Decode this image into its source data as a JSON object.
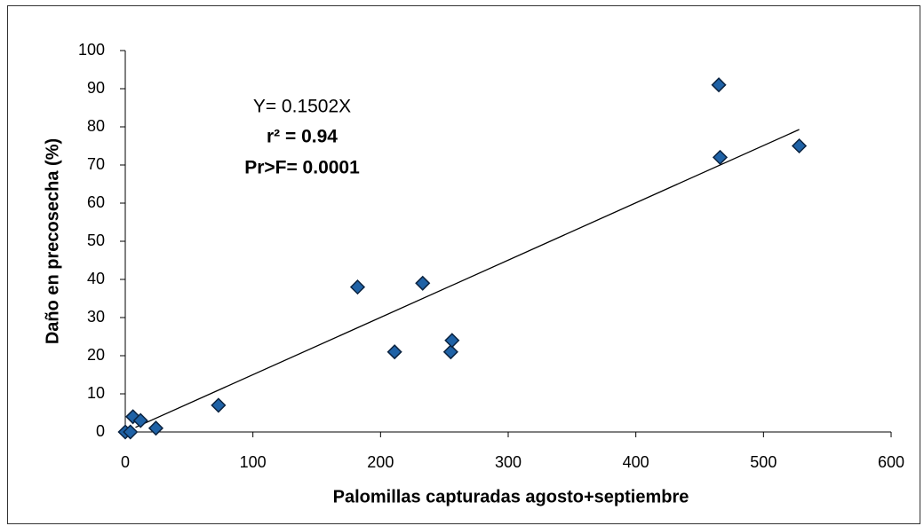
{
  "chart_data": {
    "type": "scatter",
    "x_label": "Palomillas capturadas agosto+septiembre",
    "y_label": "Daño en precosecha (%)",
    "annotations": [
      "Y= 0.1502X",
      "r² = 0.94",
      "Pr>F= 0.0001"
    ],
    "annotation_colors": [
      "#e0282e",
      "#1a1a1a",
      "#4a4a2a"
    ],
    "x": [
      0,
      4,
      6,
      12,
      24,
      73,
      182,
      211,
      233,
      255,
      256,
      465,
      466,
      528
    ],
    "values": [
      0,
      0,
      4,
      3,
      1,
      7,
      38,
      21,
      39,
      21,
      24,
      91,
      72,
      75
    ],
    "color": "#1f62a6",
    "trendline": {
      "x": [
        8,
        528
      ],
      "y": [
        1.2,
        79.3
      ]
    },
    "xlim": [
      0,
      600
    ],
    "xticks": [
      0,
      100,
      200,
      300,
      400,
      500,
      600
    ],
    "ylim": [
      0,
      100
    ],
    "yticks": [
      0,
      10,
      20,
      30,
      40,
      50,
      60,
      70,
      80,
      90,
      100
    ]
  }
}
